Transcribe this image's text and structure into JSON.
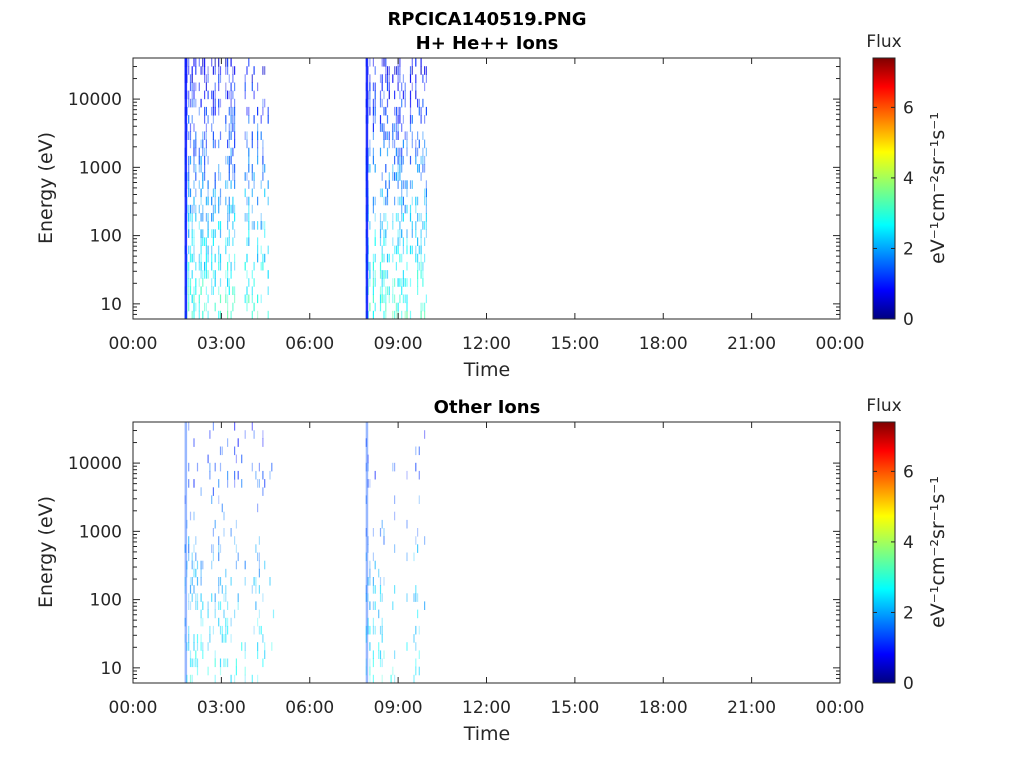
{
  "figure": {
    "title": "RPCICA140519.PNG"
  },
  "colors": {
    "axis": "#262626",
    "jet": [
      "#00007f",
      "#0000ff",
      "#007fff",
      "#00ffff",
      "#7fff7f",
      "#ffff00",
      "#ff7f00",
      "#ff0000",
      "#7f0000"
    ]
  },
  "chart_data": [
    {
      "type": "heatmap",
      "title": "H+ He++ Ions",
      "xlabel": "Time",
      "ylabel": "Energy (eV)",
      "yscale": "log",
      "ylim": [
        6,
        40000
      ],
      "xlim_hours": [
        0,
        24
      ],
      "x_ticks": [
        "00:00",
        "03:00",
        "06:00",
        "09:00",
        "12:00",
        "15:00",
        "18:00",
        "21:00",
        "00:00"
      ],
      "y_ticks": [
        {
          "value": 10,
          "label": "10"
        },
        {
          "value": 100,
          "label": "100"
        },
        {
          "value": 1000,
          "label": "1000"
        },
        {
          "value": 10000,
          "label": "10000"
        }
      ],
      "colorbar": {
        "title": "Flux",
        "label": "eV⁻¹cm⁻²sr⁻¹s⁻¹",
        "range": [
          0,
          7.4
        ],
        "ticks": [
          "0",
          "2",
          "4",
          "6"
        ]
      },
      "data_intervals_hours": [
        [
          1.75,
          4.75
        ],
        [
          7.9,
          10.0
        ]
      ],
      "intensity": "strong"
    },
    {
      "type": "heatmap",
      "title": "Other Ions",
      "xlabel": "Time",
      "ylabel": "Energy (eV)",
      "yscale": "log",
      "ylim": [
        6,
        40000
      ],
      "xlim_hours": [
        0,
        24
      ],
      "x_ticks": [
        "00:00",
        "03:00",
        "06:00",
        "09:00",
        "12:00",
        "15:00",
        "18:00",
        "21:00",
        "00:00"
      ],
      "y_ticks": [
        {
          "value": 10,
          "label": "10"
        },
        {
          "value": 100,
          "label": "100"
        },
        {
          "value": 1000,
          "label": "1000"
        },
        {
          "value": 10000,
          "label": "10000"
        }
      ],
      "colorbar": {
        "title": "Flux",
        "label": "eV⁻¹cm⁻²sr⁻¹s⁻¹",
        "range": [
          0,
          7.4
        ],
        "ticks": [
          "0",
          "2",
          "4",
          "6"
        ]
      },
      "data_intervals_hours": [
        [
          1.75,
          4.75
        ],
        [
          7.9,
          10.0
        ]
      ],
      "intensity": "weak"
    }
  ]
}
